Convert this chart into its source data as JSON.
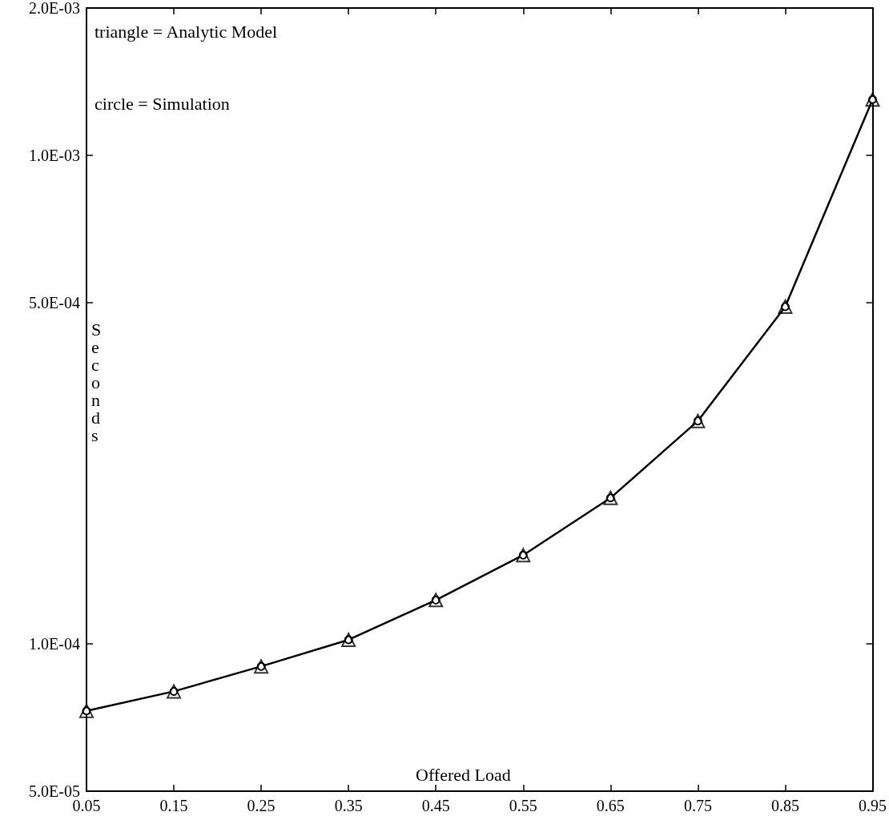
{
  "chart_data": {
    "type": "line",
    "xlabel": "Offered Load",
    "ylabel": "Seconds",
    "annotations": [
      "triangle = Analytic Model",
      "circle = Simulation"
    ],
    "x": [
      0.05,
      0.15,
      0.25,
      0.35,
      0.45,
      0.55,
      0.65,
      0.75,
      0.85,
      0.95
    ],
    "series": [
      {
        "type": "scatter",
        "color": "#000000",
        "marker": "triangle",
        "values": [
          7.3e-05,
          8e-05,
          9e-05,
          0.000102,
          0.000123,
          0.000152,
          0.000199,
          0.000286,
          0.00049,
          0.0013
        ]
      },
      {
        "color": "#000000",
        "marker": "circle",
        "values": [
          7.3e-05,
          8e-05,
          9e-05,
          0.000102,
          0.000123,
          0.000152,
          0.000199,
          0.000286,
          0.00049,
          0.0013
        ]
      }
    ],
    "xlim": [
      0.05,
      0.95
    ],
    "xticks": [
      0.05,
      0.15,
      0.25,
      0.35,
      0.45,
      0.55,
      0.65,
      0.75,
      0.85,
      0.95
    ],
    "ylim": [
      5e-05,
      0.002
    ],
    "yticks": [
      {
        "value": 5e-05,
        "label": "5.0E-05"
      },
      {
        "value": 0.0001,
        "label": "1.0E-04"
      },
      {
        "value": 0.0005,
        "label": "5.0E-04"
      },
      {
        "value": 0.001,
        "label": "1.0E-03"
      },
      {
        "value": 0.002,
        "label": "2.0E-03"
      }
    ],
    "log": "y",
    "grid": false,
    "line_style": "solid"
  }
}
